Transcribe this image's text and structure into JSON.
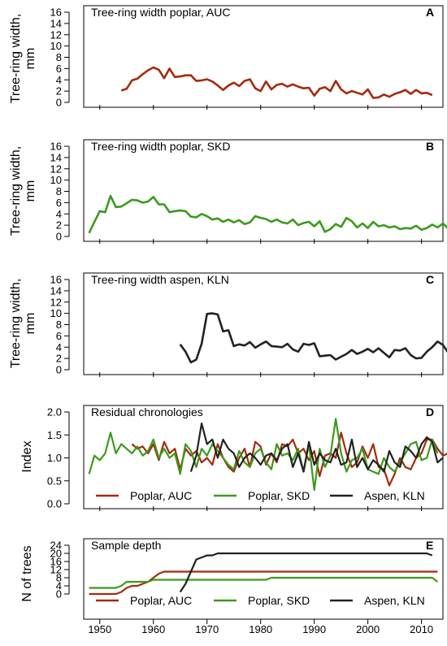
{
  "colors": {
    "poplar_auc": "#A52A0E",
    "poplar_skd": "#3B9A1C",
    "aspen_kln": "#222222",
    "individual": "#B4B4B4"
  },
  "x_axis": {
    "range": [
      1947,
      2014
    ],
    "ticks": [
      "1950",
      "1960",
      "1970",
      "1980",
      "1990",
      "2000",
      "2010"
    ]
  },
  "chart_data": [
    {
      "type": "line",
      "letter": "A",
      "title": "Tree-ring width poplar, AUC",
      "ylabel_line1": "Tree-ring width,",
      "ylabel_line2": "mm",
      "ylim": [
        0,
        16
      ],
      "yticks": [
        "0",
        "2",
        "4",
        "6",
        "8",
        "10",
        "12",
        "14",
        "16"
      ],
      "series": [
        {
          "name": "",
          "color_key": "poplar_auc",
          "start": 1954,
          "values": [
            2.1,
            2.4,
            3.9,
            4.2,
            5.0,
            5.7,
            6.2,
            5.8,
            4.3,
            6.0,
            4.5,
            4.6,
            4.8,
            4.8,
            3.8,
            3.9,
            4.1,
            3.7,
            3.0,
            2.2,
            3.0,
            3.5,
            2.9,
            3.8,
            4.1,
            2.5,
            2.0,
            3.7,
            2.3,
            3.1,
            3.3,
            2.8,
            3.2,
            2.8,
            2.5,
            2.6,
            1.2,
            2.4,
            2.7,
            2.0,
            3.8,
            2.3,
            1.6,
            2.0,
            1.7,
            1.4,
            2.3,
            0.8,
            0.9,
            1.4,
            1.0,
            1.5,
            1.8,
            2.2,
            1.5,
            2.2,
            1.6,
            1.7,
            1.3
          ]
        }
      ]
    },
    {
      "type": "line",
      "letter": "B",
      "title": "Tree-ring width poplar, SKD",
      "ylabel_line1": "Tree-ring width,",
      "ylabel_line2": "mm",
      "ylim": [
        0,
        16
      ],
      "yticks": [
        "0",
        "2",
        "4",
        "6",
        "8",
        "10",
        "12",
        "14",
        "16"
      ],
      "series": [
        {
          "name": "",
          "color_key": "poplar_skd",
          "start": 1948,
          "values": [
            0.6,
            2.6,
            4.5,
            4.3,
            7.2,
            5.2,
            5.3,
            5.9,
            6.5,
            6.4,
            6.0,
            6.2,
            7.0,
            5.7,
            5.7,
            4.3,
            4.5,
            4.6,
            4.5,
            3.5,
            3.4,
            4.0,
            3.6,
            3.0,
            3.2,
            2.6,
            3.0,
            2.5,
            2.9,
            2.2,
            2.5,
            3.6,
            3.3,
            3.1,
            2.6,
            3.0,
            2.5,
            2.3,
            3.0,
            2.0,
            2.4,
            2.6,
            1.8,
            2.7,
            0.8,
            1.3,
            2.2,
            1.7,
            3.3,
            2.7,
            1.6,
            2.3,
            1.5,
            2.6,
            1.8,
            2.0,
            1.6,
            1.8,
            1.3,
            1.5,
            1.4,
            1.9,
            1.2,
            1.5,
            2.1,
            1.6,
            2.3,
            1.4
          ]
        }
      ]
    },
    {
      "type": "line",
      "letter": "C",
      "title": "Tree-ring width aspen, KLN",
      "ylabel_line1": "Tree-ring width,",
      "ylabel_line2": "mm",
      "ylim": [
        0,
        16
      ],
      "yticks": [
        "0",
        "2",
        "4",
        "6",
        "8",
        "10",
        "12",
        "14",
        "16"
      ],
      "series": [
        {
          "name": "",
          "color_key": "aspen_kln",
          "start": 1965,
          "values": [
            4.5,
            3.2,
            1.3,
            1.8,
            4.6,
            9.9,
            10.0,
            9.8,
            6.8,
            7.0,
            4.2,
            4.5,
            4.3,
            4.9,
            3.9,
            4.5,
            5.0,
            4.2,
            4.1,
            4.0,
            4.6,
            3.6,
            3.2,
            4.6,
            4.4,
            4.7,
            2.4,
            2.5,
            2.6,
            1.8,
            2.3,
            2.8,
            3.5,
            2.8,
            3.2,
            3.7,
            3.1,
            3.8,
            3.0,
            2.2,
            3.5,
            3.4,
            3.8,
            2.6,
            2.0,
            2.1,
            3.2,
            4.0,
            5.0,
            4.4,
            3.0,
            2.8
          ]
        }
      ]
    },
    {
      "type": "line",
      "letter": "D",
      "title": "Residual chronologies",
      "ylabel_line1": "Index",
      "ylabel_line2": "",
      "ylim": [
        0,
        2
      ],
      "yticks": [
        "0.0",
        "0.5",
        "1.0",
        "1.5",
        "2.0"
      ],
      "series": [
        {
          "name": "Poplar, AUC",
          "color_key": "poplar_auc",
          "start": 1956,
          "values": [
            1.3,
            1.2,
            1.25,
            1.1,
            1.3,
            0.95,
            1.35,
            1.1,
            1.2,
            0.75,
            1.2,
            1.05,
            1.15,
            0.9,
            1.0,
            0.85,
            1.3,
            1.0,
            0.8,
            0.7,
            1.0,
            1.2,
            0.8,
            1.35,
            1.25,
            0.85,
            1.1,
            0.9,
            1.3,
            1.25,
            1.4,
            1.1,
            1.2,
            0.95,
            1.15,
            0.6,
            1.05,
            1.1,
            1.0,
            1.55,
            1.1,
            0.8,
            0.9,
            1.25,
            1.0,
            1.3,
            0.8,
            0.75,
            0.4,
            0.65,
            1.0,
            0.8,
            0.75,
            1.0,
            1.1,
            1.4,
            1.4,
            1.2,
            1.05,
            1.1,
            1.55,
            1.25
          ]
        },
        {
          "name": "Poplar, SKD",
          "color_key": "poplar_skd",
          "start": 1948,
          "values": [
            0.65,
            1.05,
            0.95,
            1.1,
            1.55,
            1.1,
            1.3,
            1.2,
            1.1,
            1.25,
            1.05,
            1.15,
            1.4,
            1.0,
            1.2,
            1.0,
            1.1,
            0.65,
            1.3,
            1.15,
            0.8,
            1.2,
            1.05,
            1.3,
            1.15,
            1.0,
            0.85,
            0.75,
            1.15,
            0.9,
            0.8,
            1.1,
            1.2,
            0.9,
            0.75,
            1.3,
            1.05,
            1.1,
            0.95,
            1.2,
            0.7,
            1.3,
            0.3,
            1.2,
            0.8,
            1.05,
            1.85,
            1.1,
            0.7,
            0.95,
            1.0,
            1.2,
            0.75,
            0.7,
            0.65,
            1.0,
            0.8,
            0.7,
            0.9,
            1.1,
            1.3,
            1.35,
            0.95,
            1.0,
            1.4,
            1.1
          ]
        },
        {
          "name": "Aspen, KLN",
          "color_key": "aspen_kln",
          "start": 1967,
          "values": [
            0.7,
            1.05,
            1.75,
            1.3,
            1.4,
            1.0,
            1.4,
            1.2,
            1.1,
            0.8,
            1.0,
            1.1,
            1.0,
            0.85,
            1.05,
            1.1,
            0.95,
            1.2,
            1.3,
            0.8,
            1.1,
            0.7,
            1.35,
            0.85,
            1.1,
            0.95,
            0.9,
            1.2,
            0.85,
            0.9,
            1.4,
            0.8,
            1.0,
            0.75,
            0.95,
            0.85,
            0.7,
            1.15,
            0.9,
            0.8,
            1.25,
            1.15,
            1.0,
            1.3,
            1.45,
            1.35,
            0.9,
            1.0
          ]
        }
      ]
    },
    {
      "type": "line",
      "letter": "E",
      "title": "Sample depth",
      "ylabel_line1": "N of trees",
      "ylabel_line2": "",
      "ylim": [
        0,
        24
      ],
      "yticks": [
        "0",
        "4",
        "8",
        "12",
        "16",
        "20",
        "24"
      ],
      "series": [
        {
          "name": "Poplar, AUC",
          "color_key": "poplar_auc",
          "start": 1948,
          "values": [
            0,
            0,
            0,
            0,
            0,
            0,
            1,
            3,
            4,
            4,
            5,
            6,
            8,
            10,
            11,
            11,
            11,
            11,
            11,
            11,
            11,
            11,
            11,
            11,
            11,
            11,
            11,
            11,
            11,
            11,
            11,
            11,
            11,
            11,
            11,
            11,
            11,
            11,
            11,
            11,
            11,
            11,
            11,
            11,
            11,
            11,
            11,
            11,
            11,
            11,
            11,
            11,
            11,
            11,
            11,
            11,
            11,
            11,
            11,
            11,
            11,
            11,
            11,
            11,
            11,
            11
          ]
        },
        {
          "name": "Poplar, SKD",
          "color_key": "poplar_skd",
          "start": 1948,
          "values": [
            3,
            3,
            3,
            3,
            3,
            3,
            4,
            6,
            6,
            6,
            6,
            6,
            7,
            7,
            7,
            7,
            7,
            7,
            7,
            7,
            7,
            7,
            7,
            7,
            7,
            7,
            7,
            7,
            7,
            7,
            7,
            7,
            7,
            7,
            8,
            8,
            8,
            8,
            8,
            8,
            8,
            8,
            8,
            8,
            8,
            8,
            8,
            8,
            8,
            8,
            8,
            8,
            8,
            8,
            8,
            8,
            8,
            8,
            8,
            8,
            8,
            8,
            8,
            8,
            8,
            6
          ]
        },
        {
          "name": "Aspen, KLN",
          "color_key": "aspen_kln",
          "start": 1965,
          "values": [
            1,
            5,
            11,
            17,
            18,
            19,
            19,
            20,
            20,
            20,
            20,
            20,
            20,
            20,
            20,
            20,
            20,
            20,
            20,
            20,
            20,
            20,
            20,
            20,
            20,
            20,
            20,
            20,
            20,
            20,
            20,
            20,
            20,
            20,
            20,
            20,
            20,
            20,
            20,
            20,
            20,
            20,
            20,
            20,
            20,
            20,
            20,
            19
          ]
        }
      ]
    }
  ]
}
